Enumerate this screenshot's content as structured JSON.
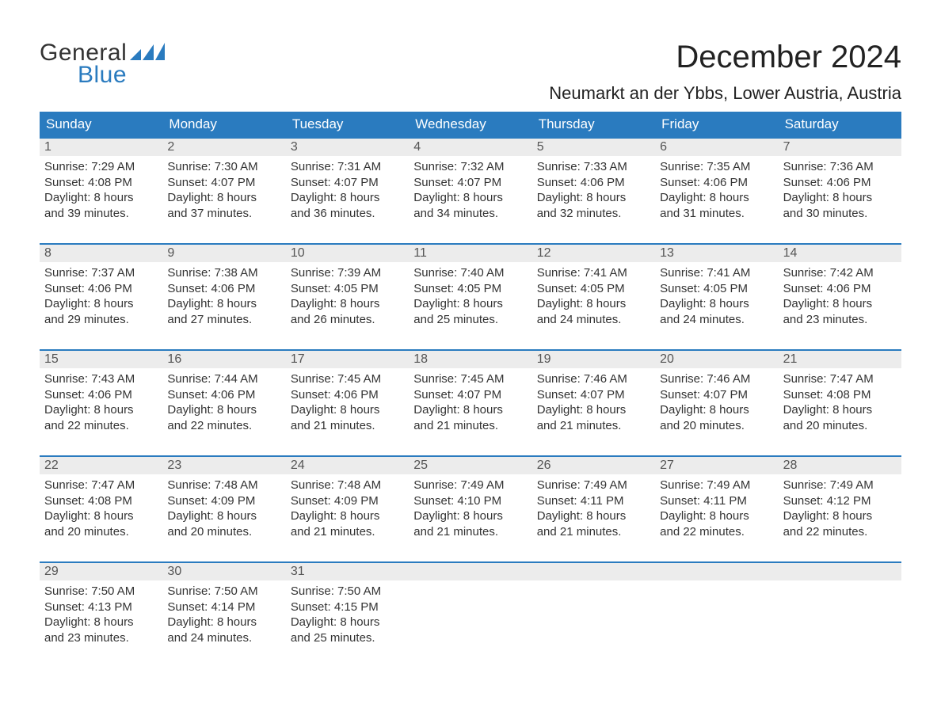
{
  "logo": {
    "text_general": "General",
    "text_blue": "Blue",
    "icon_color": "#2a7bbf"
  },
  "title": "December 2024",
  "location": "Neumarkt an der Ybbs, Lower Austria, Austria",
  "colors": {
    "header_bg": "#2a7bbf",
    "header_text": "#ffffff",
    "week_border": "#2a7bbf",
    "daynum_bg": "#ececec",
    "daynum_text": "#555555",
    "body_text": "#333333",
    "page_bg": "#ffffff"
  },
  "weekdays": [
    "Sunday",
    "Monday",
    "Tuesday",
    "Wednesday",
    "Thursday",
    "Friday",
    "Saturday"
  ],
  "weeks": [
    [
      {
        "n": "1",
        "sunrise": "Sunrise: 7:29 AM",
        "sunset": "Sunset: 4:08 PM",
        "d1": "Daylight: 8 hours",
        "d2": "and 39 minutes."
      },
      {
        "n": "2",
        "sunrise": "Sunrise: 7:30 AM",
        "sunset": "Sunset: 4:07 PM",
        "d1": "Daylight: 8 hours",
        "d2": "and 37 minutes."
      },
      {
        "n": "3",
        "sunrise": "Sunrise: 7:31 AM",
        "sunset": "Sunset: 4:07 PM",
        "d1": "Daylight: 8 hours",
        "d2": "and 36 minutes."
      },
      {
        "n": "4",
        "sunrise": "Sunrise: 7:32 AM",
        "sunset": "Sunset: 4:07 PM",
        "d1": "Daylight: 8 hours",
        "d2": "and 34 minutes."
      },
      {
        "n": "5",
        "sunrise": "Sunrise: 7:33 AM",
        "sunset": "Sunset: 4:06 PM",
        "d1": "Daylight: 8 hours",
        "d2": "and 32 minutes."
      },
      {
        "n": "6",
        "sunrise": "Sunrise: 7:35 AM",
        "sunset": "Sunset: 4:06 PM",
        "d1": "Daylight: 8 hours",
        "d2": "and 31 minutes."
      },
      {
        "n": "7",
        "sunrise": "Sunrise: 7:36 AM",
        "sunset": "Sunset: 4:06 PM",
        "d1": "Daylight: 8 hours",
        "d2": "and 30 minutes."
      }
    ],
    [
      {
        "n": "8",
        "sunrise": "Sunrise: 7:37 AM",
        "sunset": "Sunset: 4:06 PM",
        "d1": "Daylight: 8 hours",
        "d2": "and 29 minutes."
      },
      {
        "n": "9",
        "sunrise": "Sunrise: 7:38 AM",
        "sunset": "Sunset: 4:06 PM",
        "d1": "Daylight: 8 hours",
        "d2": "and 27 minutes."
      },
      {
        "n": "10",
        "sunrise": "Sunrise: 7:39 AM",
        "sunset": "Sunset: 4:05 PM",
        "d1": "Daylight: 8 hours",
        "d2": "and 26 minutes."
      },
      {
        "n": "11",
        "sunrise": "Sunrise: 7:40 AM",
        "sunset": "Sunset: 4:05 PM",
        "d1": "Daylight: 8 hours",
        "d2": "and 25 minutes."
      },
      {
        "n": "12",
        "sunrise": "Sunrise: 7:41 AM",
        "sunset": "Sunset: 4:05 PM",
        "d1": "Daylight: 8 hours",
        "d2": "and 24 minutes."
      },
      {
        "n": "13",
        "sunrise": "Sunrise: 7:41 AM",
        "sunset": "Sunset: 4:05 PM",
        "d1": "Daylight: 8 hours",
        "d2": "and 24 minutes."
      },
      {
        "n": "14",
        "sunrise": "Sunrise: 7:42 AM",
        "sunset": "Sunset: 4:06 PM",
        "d1": "Daylight: 8 hours",
        "d2": "and 23 minutes."
      }
    ],
    [
      {
        "n": "15",
        "sunrise": "Sunrise: 7:43 AM",
        "sunset": "Sunset: 4:06 PM",
        "d1": "Daylight: 8 hours",
        "d2": "and 22 minutes."
      },
      {
        "n": "16",
        "sunrise": "Sunrise: 7:44 AM",
        "sunset": "Sunset: 4:06 PM",
        "d1": "Daylight: 8 hours",
        "d2": "and 22 minutes."
      },
      {
        "n": "17",
        "sunrise": "Sunrise: 7:45 AM",
        "sunset": "Sunset: 4:06 PM",
        "d1": "Daylight: 8 hours",
        "d2": "and 21 minutes."
      },
      {
        "n": "18",
        "sunrise": "Sunrise: 7:45 AM",
        "sunset": "Sunset: 4:07 PM",
        "d1": "Daylight: 8 hours",
        "d2": "and 21 minutes."
      },
      {
        "n": "19",
        "sunrise": "Sunrise: 7:46 AM",
        "sunset": "Sunset: 4:07 PM",
        "d1": "Daylight: 8 hours",
        "d2": "and 21 minutes."
      },
      {
        "n": "20",
        "sunrise": "Sunrise: 7:46 AM",
        "sunset": "Sunset: 4:07 PM",
        "d1": "Daylight: 8 hours",
        "d2": "and 20 minutes."
      },
      {
        "n": "21",
        "sunrise": "Sunrise: 7:47 AM",
        "sunset": "Sunset: 4:08 PM",
        "d1": "Daylight: 8 hours",
        "d2": "and 20 minutes."
      }
    ],
    [
      {
        "n": "22",
        "sunrise": "Sunrise: 7:47 AM",
        "sunset": "Sunset: 4:08 PM",
        "d1": "Daylight: 8 hours",
        "d2": "and 20 minutes."
      },
      {
        "n": "23",
        "sunrise": "Sunrise: 7:48 AM",
        "sunset": "Sunset: 4:09 PM",
        "d1": "Daylight: 8 hours",
        "d2": "and 20 minutes."
      },
      {
        "n": "24",
        "sunrise": "Sunrise: 7:48 AM",
        "sunset": "Sunset: 4:09 PM",
        "d1": "Daylight: 8 hours",
        "d2": "and 21 minutes."
      },
      {
        "n": "25",
        "sunrise": "Sunrise: 7:49 AM",
        "sunset": "Sunset: 4:10 PM",
        "d1": "Daylight: 8 hours",
        "d2": "and 21 minutes."
      },
      {
        "n": "26",
        "sunrise": "Sunrise: 7:49 AM",
        "sunset": "Sunset: 4:11 PM",
        "d1": "Daylight: 8 hours",
        "d2": "and 21 minutes."
      },
      {
        "n": "27",
        "sunrise": "Sunrise: 7:49 AM",
        "sunset": "Sunset: 4:11 PM",
        "d1": "Daylight: 8 hours",
        "d2": "and 22 minutes."
      },
      {
        "n": "28",
        "sunrise": "Sunrise: 7:49 AM",
        "sunset": "Sunset: 4:12 PM",
        "d1": "Daylight: 8 hours",
        "d2": "and 22 minutes."
      }
    ],
    [
      {
        "n": "29",
        "sunrise": "Sunrise: 7:50 AM",
        "sunset": "Sunset: 4:13 PM",
        "d1": "Daylight: 8 hours",
        "d2": "and 23 minutes."
      },
      {
        "n": "30",
        "sunrise": "Sunrise: 7:50 AM",
        "sunset": "Sunset: 4:14 PM",
        "d1": "Daylight: 8 hours",
        "d2": "and 24 minutes."
      },
      {
        "n": "31",
        "sunrise": "Sunrise: 7:50 AM",
        "sunset": "Sunset: 4:15 PM",
        "d1": "Daylight: 8 hours",
        "d2": "and 25 minutes."
      },
      null,
      null,
      null,
      null
    ]
  ]
}
